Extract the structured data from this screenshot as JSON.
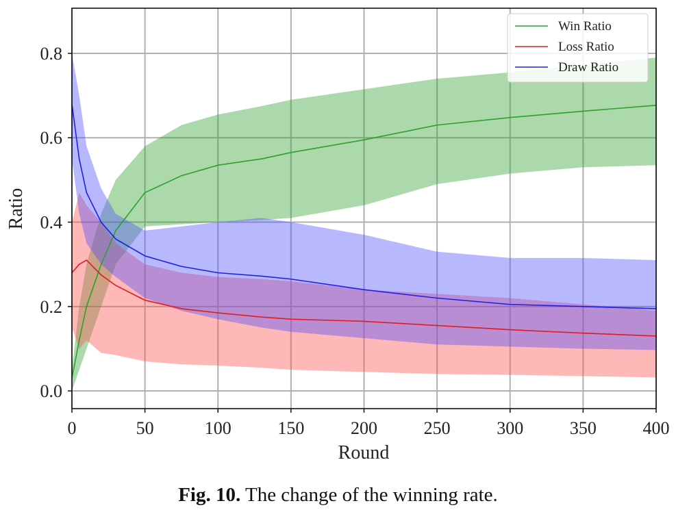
{
  "chart_data": {
    "type": "line",
    "title": "",
    "xlabel": "Round",
    "ylabel": "Ratio",
    "xlim": [
      0,
      400
    ],
    "ylim": [
      -0.042,
      0.907
    ],
    "xticks": [
      0,
      50,
      100,
      150,
      200,
      250,
      300,
      350,
      400
    ],
    "yticks": [
      0.0,
      0.2,
      0.4,
      0.6,
      0.8
    ],
    "xtick_labels": [
      "0",
      "50",
      "100",
      "150",
      "200",
      "250",
      "300",
      "350",
      "400"
    ],
    "ytick_labels": [
      "0.0",
      "0.2",
      "0.4",
      "0.6",
      "0.8"
    ],
    "grid": true,
    "legend_position": "top-right",
    "x": [
      0,
      5,
      10,
      20,
      30,
      50,
      75,
      100,
      130,
      150,
      200,
      250,
      300,
      350,
      400
    ],
    "series": [
      {
        "name": "Win Ratio",
        "color": "#2ca02c",
        "fill": "#2ca02c",
        "mean": [
          0.03,
          0.12,
          0.2,
          0.3,
          0.38,
          0.47,
          0.51,
          0.535,
          0.55,
          0.565,
          0.595,
          0.63,
          0.648,
          0.663,
          0.677
        ],
        "upper": [
          0.05,
          0.2,
          0.3,
          0.42,
          0.5,
          0.58,
          0.63,
          0.655,
          0.675,
          0.69,
          0.715,
          0.74,
          0.755,
          0.772,
          0.79
        ],
        "lower": [
          0.0,
          0.05,
          0.1,
          0.2,
          0.3,
          0.39,
          0.395,
          0.4,
          0.405,
          0.41,
          0.44,
          0.49,
          0.515,
          0.53,
          0.535
        ]
      },
      {
        "name": "Loss Ratio",
        "color": "#e31a1c",
        "fill": "#ff4d4d",
        "mean": [
          0.28,
          0.3,
          0.31,
          0.275,
          0.25,
          0.215,
          0.195,
          0.185,
          0.175,
          0.17,
          0.165,
          0.155,
          0.145,
          0.137,
          0.13
        ],
        "upper": [
          0.4,
          0.47,
          0.44,
          0.4,
          0.35,
          0.3,
          0.28,
          0.27,
          0.265,
          0.26,
          0.24,
          0.23,
          0.22,
          0.205,
          0.19
        ],
        "lower": [
          0.15,
          0.1,
          0.12,
          0.09,
          0.085,
          0.07,
          0.063,
          0.06,
          0.055,
          0.05,
          0.045,
          0.04,
          0.038,
          0.035,
          0.032
        ]
      },
      {
        "name": "Draw Ratio",
        "color": "#1f1fe6",
        "fill": "#4d4dff",
        "mean": [
          0.68,
          0.55,
          0.47,
          0.4,
          0.36,
          0.32,
          0.295,
          0.28,
          0.272,
          0.265,
          0.24,
          0.22,
          0.205,
          0.2,
          0.195
        ],
        "upper": [
          0.8,
          0.7,
          0.58,
          0.48,
          0.42,
          0.38,
          0.39,
          0.4,
          0.41,
          0.4,
          0.37,
          0.33,
          0.315,
          0.315,
          0.31
        ],
        "lower": [
          0.55,
          0.42,
          0.35,
          0.3,
          0.27,
          0.22,
          0.19,
          0.17,
          0.15,
          0.14,
          0.125,
          0.11,
          0.105,
          0.1,
          0.097
        ]
      }
    ]
  },
  "caption": {
    "label": "Fig. 10.",
    "text": " The change of the winning rate."
  }
}
